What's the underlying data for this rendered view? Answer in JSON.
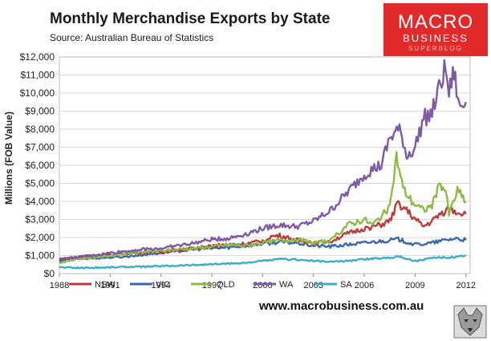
{
  "header": {
    "title": "Monthly Merchandise Exports by State",
    "source": "Source: Australian Bureau of Statistics"
  },
  "logo": {
    "line1": "MACRO",
    "line2": "BUSINESS",
    "line3": "SUPERBLOG",
    "color": "#e32a2a"
  },
  "footer": {
    "website": "www.macrobusiness.com.au"
  },
  "chart_data": {
    "type": "line",
    "ylabel": "Millions (FOB Value)",
    "xlim": [
      1988,
      2012.25
    ],
    "ylim": [
      0,
      12000
    ],
    "yticks": [
      0,
      1000,
      2000,
      3000,
      4000,
      5000,
      6000,
      7000,
      8000,
      9000,
      10000,
      11000,
      12000
    ],
    "ytick_labels": [
      "$0",
      "$1,000",
      "$2,000",
      "$3,000",
      "$4,000",
      "$5,000",
      "$6,000",
      "$7,000",
      "$8,000",
      "$9,000",
      "$10,000",
      "$11,000",
      "$12,000"
    ],
    "xticks": [
      1988,
      1991,
      1994,
      1997,
      2000,
      2003,
      2006,
      2009,
      2012
    ],
    "xtick_labels": [
      "1988",
      "1991",
      "1994",
      "1997",
      "2000",
      "2003",
      "2006",
      "2009",
      "2012"
    ],
    "grid": true,
    "legend_position": "bottom",
    "series": [
      {
        "name": "NSW",
        "color": "#c0393b",
        "points": [
          [
            1988.0,
            800
          ],
          [
            1989.0,
            900
          ],
          [
            1990.0,
            1000
          ],
          [
            1991.0,
            1050
          ],
          [
            1992.0,
            1100
          ],
          [
            1993.0,
            1150
          ],
          [
            1994.0,
            1200
          ],
          [
            1995.0,
            1300
          ],
          [
            1996.0,
            1400
          ],
          [
            1997.0,
            1550
          ],
          [
            1998.0,
            1600
          ],
          [
            1999.0,
            1650
          ],
          [
            2000.0,
            1800
          ],
          [
            2000.5,
            2050
          ],
          [
            2001.0,
            2100
          ],
          [
            2002.0,
            1850
          ],
          [
            2003.0,
            1700
          ],
          [
            2004.0,
            1800
          ],
          [
            2005.0,
            2200
          ],
          [
            2006.0,
            2500
          ],
          [
            2007.0,
            2700
          ],
          [
            2007.5,
            2900
          ],
          [
            2008.0,
            3900
          ],
          [
            2008.5,
            3500
          ],
          [
            2009.0,
            3000
          ],
          [
            2009.5,
            2600
          ],
          [
            2010.0,
            2900
          ],
          [
            2010.5,
            3300
          ],
          [
            2011.0,
            3600
          ],
          [
            2011.5,
            3400
          ],
          [
            2012.0,
            3300
          ]
        ]
      },
      {
        "name": "VIC",
        "color": "#3a67b1",
        "points": [
          [
            1988.0,
            700
          ],
          [
            1989.0,
            800
          ],
          [
            1990.0,
            850
          ],
          [
            1991.0,
            900
          ],
          [
            1992.0,
            950
          ],
          [
            1993.0,
            1050
          ],
          [
            1994.0,
            1150
          ],
          [
            1995.0,
            1250
          ],
          [
            1996.0,
            1350
          ],
          [
            1997.0,
            1400
          ],
          [
            1998.0,
            1450
          ],
          [
            1999.0,
            1550
          ],
          [
            2000.0,
            1650
          ],
          [
            2001.0,
            1750
          ],
          [
            2002.0,
            1700
          ],
          [
            2003.0,
            1550
          ],
          [
            2004.0,
            1500
          ],
          [
            2005.0,
            1600
          ],
          [
            2006.0,
            1700
          ],
          [
            2007.0,
            1800
          ],
          [
            2008.0,
            1900
          ],
          [
            2009.0,
            1600
          ],
          [
            2010.0,
            1700
          ],
          [
            2011.0,
            1900
          ],
          [
            2011.5,
            1950
          ],
          [
            2012.0,
            1850
          ]
        ]
      },
      {
        "name": "QLD",
        "color": "#8cbb46",
        "points": [
          [
            1988.0,
            600
          ],
          [
            1989.0,
            800
          ],
          [
            1990.0,
            900
          ],
          [
            1991.0,
            1000
          ],
          [
            1992.0,
            1100
          ],
          [
            1993.0,
            1200
          ],
          [
            1994.0,
            1250
          ],
          [
            1995.0,
            1350
          ],
          [
            1996.0,
            1400
          ],
          [
            1997.0,
            1500
          ],
          [
            1998.0,
            1600
          ],
          [
            1999.0,
            1550
          ],
          [
            2000.0,
            1700
          ],
          [
            2001.0,
            1850
          ],
          [
            2002.0,
            1900
          ],
          [
            2003.0,
            1700
          ],
          [
            2004.0,
            1800
          ],
          [
            2005.0,
            2700
          ],
          [
            2006.0,
            3000
          ],
          [
            2006.5,
            2700
          ],
          [
            2007.0,
            3200
          ],
          [
            2007.5,
            3600
          ],
          [
            2007.9,
            6500
          ],
          [
            2008.3,
            4700
          ],
          [
            2008.8,
            4000
          ],
          [
            2009.5,
            3500
          ],
          [
            2010.0,
            3800
          ],
          [
            2010.5,
            5000
          ],
          [
            2010.8,
            4600
          ],
          [
            2011.0,
            3300
          ],
          [
            2011.5,
            4600
          ],
          [
            2012.0,
            4000
          ]
        ]
      },
      {
        "name": "WA",
        "color": "#7d5aa6",
        "points": [
          [
            1988.0,
            800
          ],
          [
            1989.0,
            900
          ],
          [
            1990.0,
            1000
          ],
          [
            1991.0,
            1150
          ],
          [
            1992.0,
            1250
          ],
          [
            1993.0,
            1350
          ],
          [
            1994.0,
            1400
          ],
          [
            1995.0,
            1550
          ],
          [
            1996.0,
            1700
          ],
          [
            1997.0,
            1900
          ],
          [
            1998.0,
            1950
          ],
          [
            1999.0,
            2200
          ],
          [
            2000.0,
            2500
          ],
          [
            2001.0,
            2700
          ],
          [
            2002.0,
            2600
          ],
          [
            2003.0,
            2900
          ],
          [
            2004.0,
            3500
          ],
          [
            2005.0,
            4500
          ],
          [
            2006.0,
            5500
          ],
          [
            2006.5,
            5800
          ],
          [
            2007.0,
            6000
          ],
          [
            2007.5,
            7500
          ],
          [
            2008.0,
            8000
          ],
          [
            2008.3,
            7400
          ],
          [
            2008.5,
            6500
          ],
          [
            2009.0,
            7000
          ],
          [
            2009.5,
            8600
          ],
          [
            2010.0,
            8900
          ],
          [
            2010.5,
            10500
          ],
          [
            2010.8,
            11400
          ],
          [
            2011.0,
            10000
          ],
          [
            2011.3,
            11200
          ],
          [
            2011.6,
            9200
          ],
          [
            2012.0,
            9500
          ]
        ]
      },
      {
        "name": "SA",
        "color": "#3aaec9",
        "points": [
          [
            1988.0,
            350
          ],
          [
            1989.0,
            320
          ],
          [
            1990.0,
            330
          ],
          [
            1991.0,
            350
          ],
          [
            1992.0,
            380
          ],
          [
            1993.0,
            380
          ],
          [
            1994.0,
            420
          ],
          [
            1995.0,
            450
          ],
          [
            1996.0,
            480
          ],
          [
            1997.0,
            520
          ],
          [
            1998.0,
            550
          ],
          [
            1999.0,
            600
          ],
          [
            2000.0,
            700
          ],
          [
            2001.0,
            800
          ],
          [
            2002.0,
            780
          ],
          [
            2003.0,
            700
          ],
          [
            2004.0,
            650
          ],
          [
            2005.0,
            700
          ],
          [
            2006.0,
            800
          ],
          [
            2007.0,
            850
          ],
          [
            2008.0,
            950
          ],
          [
            2009.0,
            700
          ],
          [
            2010.0,
            850
          ],
          [
            2011.0,
            900
          ],
          [
            2012.0,
            1000
          ]
        ]
      }
    ]
  }
}
